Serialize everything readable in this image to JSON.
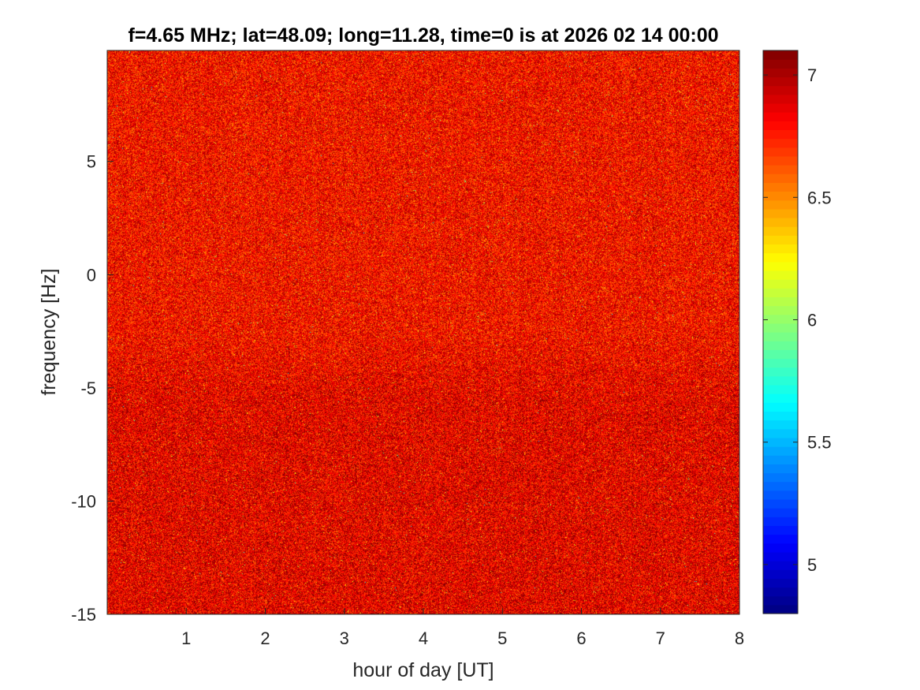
{
  "chart_data": {
    "type": "heatmap",
    "title": "f=4.65 MHz;  lat=48.09; long=11.28, time=0 is at 2026 02 14 00:00",
    "xlabel": "hour of day [UT]",
    "ylabel": "frequency [Hz]",
    "xlim": [
      0,
      8
    ],
    "ylim": [
      -15,
      9.9
    ],
    "xticks": [
      1,
      2,
      3,
      4,
      5,
      6,
      7,
      8
    ],
    "xtick_labels": [
      "1",
      "2",
      "3",
      "4",
      "5",
      "6",
      "7",
      "8"
    ],
    "yticks": [
      -15,
      -10,
      -5,
      0,
      5
    ],
    "ytick_labels": [
      "-15",
      "-10",
      "-5",
      "0",
      "5"
    ],
    "colormap": "jet",
    "clim": [
      4.8,
      7.1
    ],
    "colorbar_ticks": [
      5,
      5.5,
      6,
      6.5,
      7
    ],
    "colorbar_tick_labels": [
      "5",
      "5.5",
      "6",
      "6.5",
      "7"
    ],
    "dominant_values": "mostly 6.5-7.1 (orange to dark red); lower-frequency band below about -5 Hz darker (near 7.0-7.1)",
    "grid": false
  }
}
